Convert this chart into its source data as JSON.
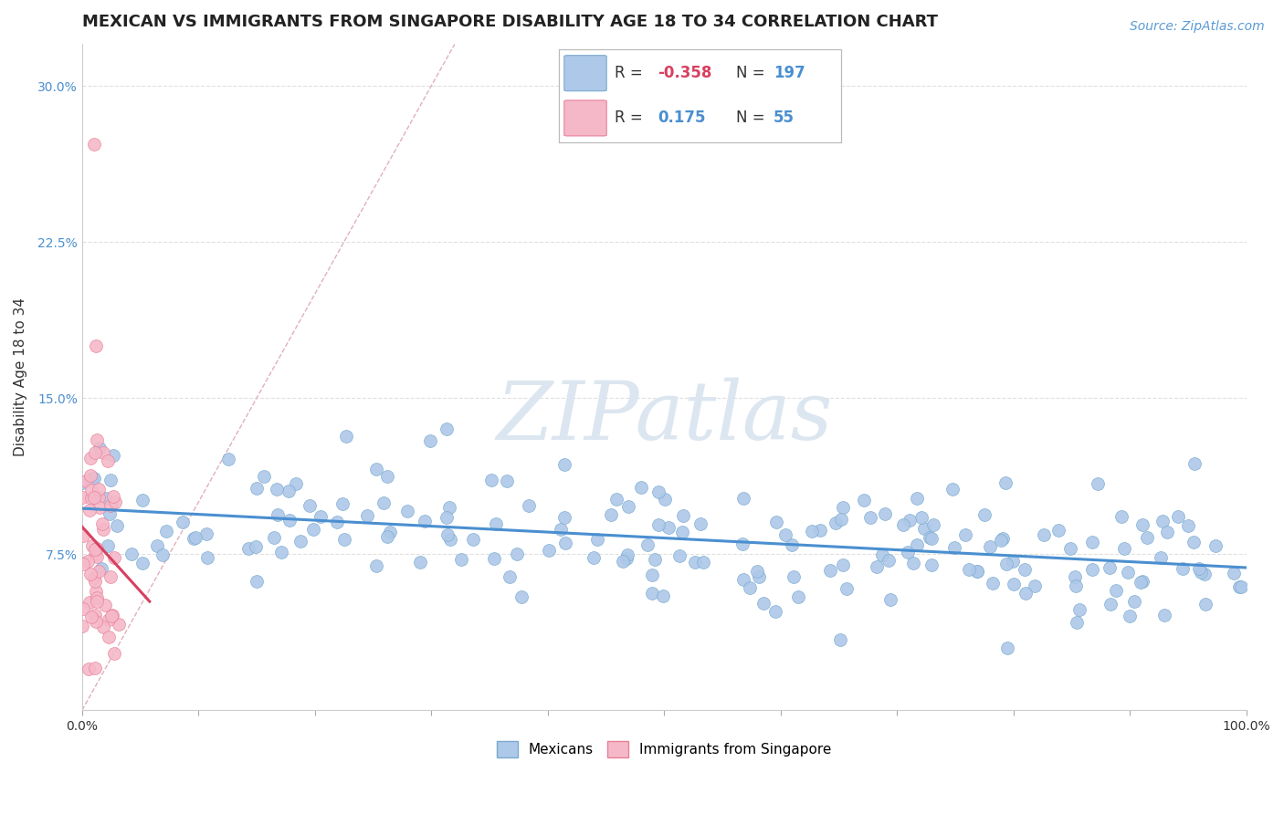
{
  "title": "MEXICAN VS IMMIGRANTS FROM SINGAPORE DISABILITY AGE 18 TO 34 CORRELATION CHART",
  "source_text": "Source: ZipAtlas.com",
  "ylabel": "Disability Age 18 to 34",
  "xlim": [
    0.0,
    1.0
  ],
  "ylim": [
    0.0,
    0.32
  ],
  "xticks": [
    0.0,
    0.1,
    0.2,
    0.3,
    0.4,
    0.5,
    0.6,
    0.7,
    0.8,
    0.9,
    1.0
  ],
  "xticklabels": [
    "0.0%",
    "",
    "",
    "",
    "",
    "",
    "",
    "",
    "",
    "",
    "100.0%"
  ],
  "yticks": [
    0.075,
    0.15,
    0.225,
    0.3
  ],
  "yticklabels": [
    "7.5%",
    "15.0%",
    "22.5%",
    "30.0%"
  ],
  "mexican_color": "#adc8e8",
  "singapore_color": "#f5b8c8",
  "mexican_edge": "#7aaad0",
  "singapore_edge": "#e8809a",
  "mexican_line_color": "#4a8fd0",
  "singapore_line_color": "#d84060",
  "ref_line_color": "#e0b0bc",
  "legend_r1": "-0.358",
  "legend_n1": "197",
  "legend_r2": "0.175",
  "legend_n2": "55",
  "watermark": "ZIPatlas",
  "watermark_color": "#dce6f0",
  "title_fontsize": 13,
  "axis_label_fontsize": 11,
  "tick_fontsize": 10,
  "source_fontsize": 10,
  "background_color": "#ffffff",
  "grid_color": "#e0e0e0",
  "r_color": "#4a8fd0",
  "r_neg_color": "#d84060",
  "mexican_R": -0.358,
  "mexican_N": 197,
  "singapore_R": 0.175,
  "singapore_N": 55
}
